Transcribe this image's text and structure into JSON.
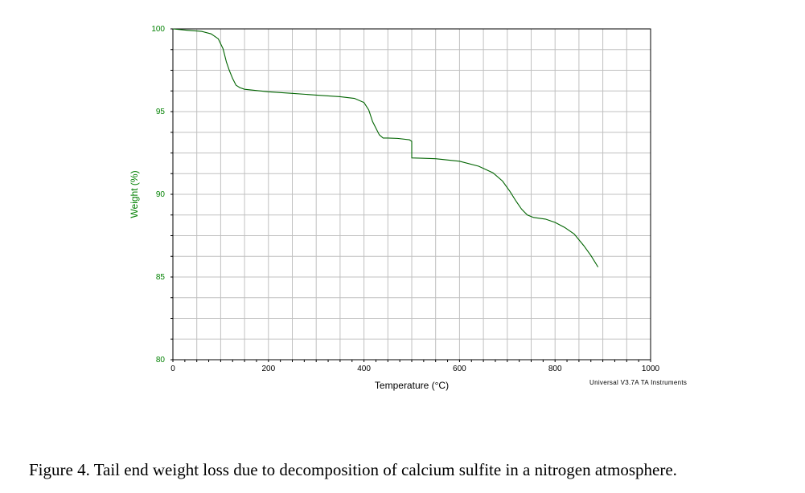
{
  "chart_data": {
    "type": "line",
    "xlabel": "Temperature (°C)",
    "ylabel": "Weight (%)",
    "xlim": [
      0,
      1000
    ],
    "ylim": [
      80,
      100
    ],
    "x_ticks": [
      0,
      200,
      400,
      600,
      800,
      1000
    ],
    "y_ticks": [
      80,
      85,
      90,
      95,
      100
    ],
    "grid": true,
    "colors": {
      "line": "#006400",
      "ylabel": "#008000",
      "ytick": "#008000",
      "grid": "#c0c0c0"
    },
    "series": [
      {
        "x": [
          0,
          30,
          60,
          80,
          95,
          105,
          112,
          118,
          125,
          132,
          140,
          150,
          200,
          250,
          300,
          350,
          380,
          400,
          410,
          418,
          425,
          432,
          440,
          450,
          470,
          495,
          500,
          500,
          520,
          550,
          600,
          640,
          670,
          690,
          705,
          718,
          730,
          742,
          755,
          780,
          800,
          820,
          840,
          860,
          875,
          890
        ],
        "y": [
          100,
          99.92,
          99.85,
          99.7,
          99.4,
          98.8,
          98.0,
          97.5,
          97.0,
          96.6,
          96.45,
          96.35,
          96.2,
          96.1,
          96.0,
          95.9,
          95.8,
          95.55,
          95.1,
          94.4,
          94.0,
          93.6,
          93.4,
          93.4,
          93.38,
          93.3,
          93.2,
          92.2,
          92.18,
          92.15,
          92.0,
          91.7,
          91.3,
          90.8,
          90.2,
          89.6,
          89.1,
          88.75,
          88.6,
          88.5,
          88.3,
          88.0,
          87.6,
          86.9,
          86.3,
          85.6
        ]
      }
    ]
  },
  "software_note": "Universal V3.7A TA Instruments",
  "caption": "Figure 4.  Tail end weight loss due to decomposition of calcium sulfite in a nitrogen atmosphere."
}
